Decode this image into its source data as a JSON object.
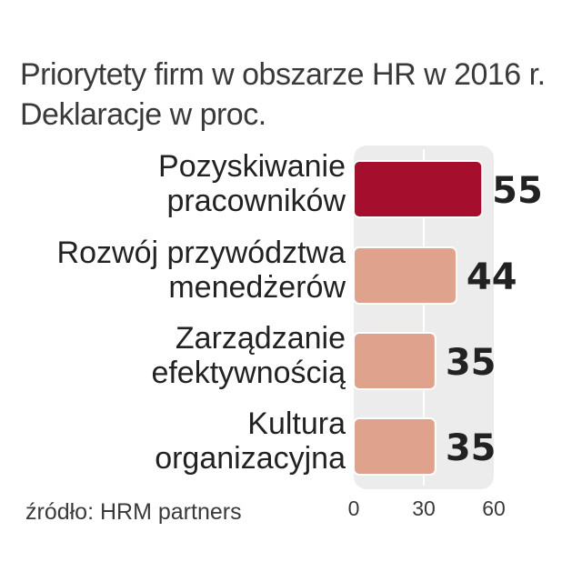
{
  "title_lines": [
    "Priorytety firm w obszarze HR w 2016 r.",
    "Deklaracje w proc."
  ],
  "source": "źródło: HRM partners",
  "colors": {
    "highlight": "#a50f2d",
    "bar": "#dfa28c",
    "panel": "#ececec",
    "gridline": "#ffffff",
    "text": "#222222"
  },
  "chart_data": {
    "type": "bar",
    "orientation": "horizontal",
    "title": "Priorytety firm w obszarze HR w 2016 r.",
    "subtitle": "Deklaracje w proc.",
    "categories": [
      [
        "Pozyskiwanie",
        "pracowników"
      ],
      [
        "Rozwój przywództwa",
        "menedżerów"
      ],
      [
        "Zarządzanie",
        "efektywnością"
      ],
      [
        "Kultura",
        "organizacyjna"
      ]
    ],
    "values": [
      55,
      44,
      35,
      35
    ],
    "highlight_index": 0,
    "xlim": [
      0,
      60
    ],
    "xticks": [
      0,
      30,
      60
    ],
    "grid": true,
    "legend": "none",
    "xlabel": "",
    "ylabel": ""
  }
}
